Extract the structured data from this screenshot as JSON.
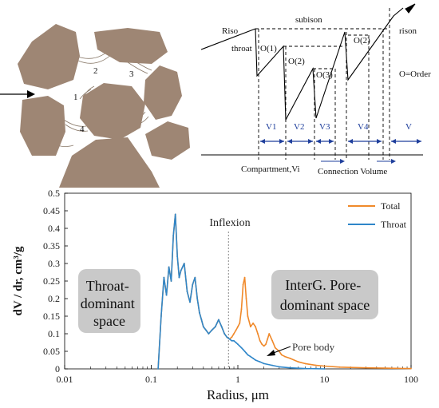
{
  "pore_sketch": {
    "labels": [
      "1",
      "2",
      "3",
      "4"
    ]
  },
  "schematic": {
    "texts": {
      "riso": "Riso",
      "subison": "subison",
      "rison": "rison",
      "throat": "throat",
      "o1": "O(1)",
      "o2a": "O(2)",
      "o3": "O(3)",
      "o2b": "O(2)",
      "order": "O=Order",
      "compartment": "Compartment,Vi",
      "connection": "Connection Volume"
    },
    "volumes": [
      "V1",
      "V2",
      "V3",
      "V4",
      "V"
    ]
  },
  "chart_data": {
    "type": "line",
    "xlabel": "Radius, μm",
    "ylabel": "dV / dr, cm³/g",
    "xscale": "log",
    "xlim": [
      0.01,
      100
    ],
    "ylim": [
      0,
      0.5
    ],
    "xticks": [
      "0.01",
      "0.1",
      "1",
      "10",
      "100"
    ],
    "yticks": [
      "0",
      "0.05",
      "0.1",
      "0.15",
      "0.2",
      "0.25",
      "0.3",
      "0.35",
      "0.4",
      "0.45",
      "0.5"
    ],
    "legend_position": "top-right",
    "series": [
      {
        "name": "Total",
        "color": "#f0892a",
        "x": [
          0.12,
          0.13,
          0.14,
          0.15,
          0.16,
          0.17,
          0.18,
          0.19,
          0.2,
          0.21,
          0.22,
          0.24,
          0.26,
          0.28,
          0.3,
          0.32,
          0.34,
          0.36,
          0.38,
          0.4,
          0.43,
          0.46,
          0.5,
          0.55,
          0.6,
          0.65,
          0.7,
          0.75,
          0.8,
          0.85,
          0.9,
          0.95,
          1.0,
          1.05,
          1.1,
          1.15,
          1.2,
          1.25,
          1.3,
          1.4,
          1.5,
          1.6,
          1.7,
          1.8,
          1.9,
          2.0,
          2.1,
          2.2,
          2.3,
          2.5,
          2.7,
          3.0,
          3.2,
          3.5,
          4.0,
          5.0,
          6.0,
          8.0,
          10.0,
          15.0,
          20.0,
          30.0,
          50.0,
          100.0
        ],
        "values": [
          0.0,
          0.15,
          0.26,
          0.21,
          0.29,
          0.25,
          0.38,
          0.44,
          0.32,
          0.26,
          0.28,
          0.3,
          0.22,
          0.19,
          0.24,
          0.26,
          0.2,
          0.16,
          0.14,
          0.12,
          0.11,
          0.1,
          0.11,
          0.12,
          0.14,
          0.12,
          0.1,
          0.09,
          0.085,
          0.09,
          0.1,
          0.11,
          0.12,
          0.13,
          0.17,
          0.24,
          0.26,
          0.2,
          0.15,
          0.12,
          0.13,
          0.12,
          0.1,
          0.08,
          0.07,
          0.065,
          0.07,
          0.085,
          0.1,
          0.08,
          0.06,
          0.05,
          0.04,
          0.035,
          0.03,
          0.02,
          0.015,
          0.01,
          0.008,
          0.005,
          0.004,
          0.003,
          0.002,
          0.001
        ]
      },
      {
        "name": "Throat",
        "color": "#2f86c9",
        "x": [
          0.12,
          0.13,
          0.14,
          0.15,
          0.16,
          0.17,
          0.18,
          0.19,
          0.2,
          0.21,
          0.22,
          0.24,
          0.26,
          0.28,
          0.3,
          0.32,
          0.34,
          0.36,
          0.38,
          0.4,
          0.43,
          0.46,
          0.5,
          0.55,
          0.6,
          0.65,
          0.7,
          0.75,
          0.8,
          0.85,
          0.9,
          0.95,
          1.0,
          1.05,
          1.1,
          1.15,
          1.2,
          1.25,
          1.3,
          1.4,
          1.5,
          1.6,
          1.8,
          2.0,
          2.5,
          3.0,
          4.0,
          6.0,
          10.0
        ],
        "values": [
          0.0,
          0.15,
          0.26,
          0.21,
          0.29,
          0.25,
          0.38,
          0.44,
          0.32,
          0.26,
          0.28,
          0.3,
          0.22,
          0.19,
          0.24,
          0.26,
          0.2,
          0.16,
          0.14,
          0.12,
          0.11,
          0.1,
          0.11,
          0.12,
          0.14,
          0.12,
          0.1,
          0.09,
          0.085,
          0.08,
          0.08,
          0.075,
          0.07,
          0.065,
          0.06,
          0.055,
          0.05,
          0.045,
          0.04,
          0.035,
          0.03,
          0.025,
          0.02,
          0.015,
          0.01,
          0.006,
          0.003,
          0.001,
          0.0
        ]
      }
    ],
    "annotations": {
      "inflexion": {
        "text": "Inflexion",
        "x": 0.78
      },
      "throat_space": "Throat-\ndominant\nspace",
      "interg_space": "InterG. Pore-\ndominant space",
      "pore_body": "Pore body"
    }
  }
}
